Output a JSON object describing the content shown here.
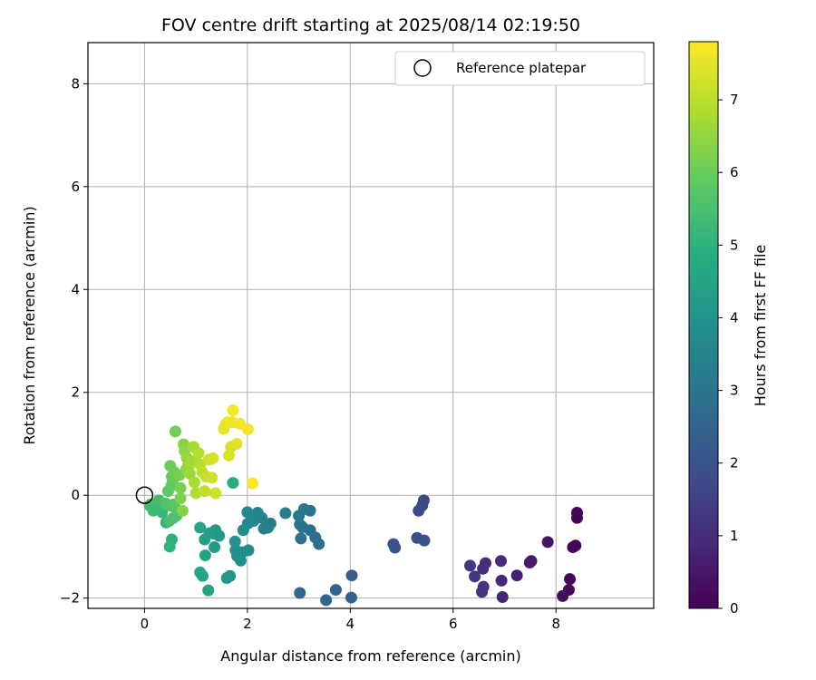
{
  "chart_data": {
    "type": "scatter",
    "title": "FOV centre drift starting at 2025/08/14 02:19:50",
    "xlabel": "Angular distance from reference (arcmin)",
    "ylabel": "Rotation from reference (arcmin)",
    "xlim": [
      -1.1,
      9.9
    ],
    "ylim": [
      -2.2,
      8.8
    ],
    "xticks": [
      0,
      2,
      4,
      6,
      8
    ],
    "yticks": [
      -2,
      0,
      2,
      4,
      6,
      8
    ],
    "grid": true,
    "colormap": "viridis",
    "colorbar": {
      "label": "Hours from first FF file",
      "range": [
        0,
        7.8
      ],
      "ticks": [
        0,
        1,
        2,
        3,
        4,
        5,
        6,
        7
      ]
    },
    "legend": {
      "label": "Reference platepar",
      "location": "top-right"
    },
    "reference_point": {
      "x": 0,
      "y": 0
    },
    "points": [
      {
        "x": 8.41,
        "y": -0.34,
        "h": 0.05
      },
      {
        "x": 8.41,
        "y": -0.44,
        "h": 0.08
      },
      {
        "x": 8.38,
        "y": -0.98,
        "h": 0.12
      },
      {
        "x": 8.33,
        "y": -1.01,
        "h": 0.15
      },
      {
        "x": 8.27,
        "y": -1.63,
        "h": 0.2
      },
      {
        "x": 8.25,
        "y": -1.84,
        "h": 0.25
      },
      {
        "x": 8.13,
        "y": -1.96,
        "h": 0.3
      },
      {
        "x": 7.84,
        "y": -0.91,
        "h": 0.45
      },
      {
        "x": 7.52,
        "y": -1.28,
        "h": 0.55
      },
      {
        "x": 7.49,
        "y": -1.31,
        "h": 0.6
      },
      {
        "x": 7.24,
        "y": -1.56,
        "h": 0.7
      },
      {
        "x": 6.96,
        "y": -1.98,
        "h": 0.8
      },
      {
        "x": 6.94,
        "y": -1.66,
        "h": 0.85
      },
      {
        "x": 6.93,
        "y": -1.28,
        "h": 0.9
      },
      {
        "x": 6.63,
        "y": -1.32,
        "h": 1.0
      },
      {
        "x": 6.58,
        "y": -1.43,
        "h": 1.05
      },
      {
        "x": 6.59,
        "y": -1.78,
        "h": 1.1
      },
      {
        "x": 6.56,
        "y": -1.88,
        "h": 1.15
      },
      {
        "x": 6.42,
        "y": -1.58,
        "h": 1.2
      },
      {
        "x": 6.33,
        "y": -1.37,
        "h": 1.3
      },
      {
        "x": 5.43,
        "y": -0.1,
        "h": 1.7
      },
      {
        "x": 5.4,
        "y": -0.2,
        "h": 1.75
      },
      {
        "x": 5.33,
        "y": -0.3,
        "h": 1.8
      },
      {
        "x": 5.3,
        "y": -0.83,
        "h": 1.85
      },
      {
        "x": 5.44,
        "y": -0.88,
        "h": 1.9
      },
      {
        "x": 4.84,
        "y": -0.95,
        "h": 1.95
      },
      {
        "x": 4.87,
        "y": -1.02,
        "h": 2.0
      },
      {
        "x": 4.03,
        "y": -1.56,
        "h": 2.3
      },
      {
        "x": 4.02,
        "y": -1.99,
        "h": 2.35
      },
      {
        "x": 3.72,
        "y": -1.84,
        "h": 2.45
      },
      {
        "x": 3.53,
        "y": -2.04,
        "h": 2.55
      },
      {
        "x": 3.02,
        "y": -1.9,
        "h": 2.65
      },
      {
        "x": 3.39,
        "y": -0.95,
        "h": 2.75
      },
      {
        "x": 3.32,
        "y": -0.82,
        "h": 2.8
      },
      {
        "x": 3.22,
        "y": -0.68,
        "h": 2.85
      },
      {
        "x": 3.07,
        "y": -0.62,
        "h": 2.9
      },
      {
        "x": 3.04,
        "y": -0.84,
        "h": 2.95
      },
      {
        "x": 3.02,
        "y": -0.57,
        "h": 3.0
      },
      {
        "x": 3.22,
        "y": -0.3,
        "h": 3.05
      },
      {
        "x": 3.1,
        "y": -0.27,
        "h": 3.1
      },
      {
        "x": 3.0,
        "y": -0.4,
        "h": 3.15
      },
      {
        "x": 2.74,
        "y": -0.35,
        "h": 3.2
      },
      {
        "x": 2.45,
        "y": -0.55,
        "h": 3.3
      },
      {
        "x": 2.4,
        "y": -0.63,
        "h": 3.35
      },
      {
        "x": 2.32,
        "y": -0.65,
        "h": 3.4
      },
      {
        "x": 2.28,
        "y": -0.44,
        "h": 3.45
      },
      {
        "x": 2.2,
        "y": -0.34,
        "h": 3.5
      },
      {
        "x": 2.12,
        "y": -0.5,
        "h": 3.55
      },
      {
        "x": 2.01,
        "y": -0.55,
        "h": 3.6
      },
      {
        "x": 2.0,
        "y": -0.33,
        "h": 3.65
      },
      {
        "x": 1.92,
        "y": -0.68,
        "h": 3.7
      },
      {
        "x": 2.02,
        "y": -1.07,
        "h": 3.75
      },
      {
        "x": 1.9,
        "y": -1.11,
        "h": 3.8
      },
      {
        "x": 1.87,
        "y": -1.27,
        "h": 3.85
      },
      {
        "x": 1.8,
        "y": -1.18,
        "h": 3.9
      },
      {
        "x": 1.77,
        "y": -1.07,
        "h": 3.95
      },
      {
        "x": 1.76,
        "y": -0.9,
        "h": 4.0
      },
      {
        "x": 1.66,
        "y": -1.57,
        "h": 4.05
      },
      {
        "x": 1.6,
        "y": -1.61,
        "h": 4.1
      },
      {
        "x": 1.45,
        "y": -0.79,
        "h": 4.15
      },
      {
        "x": 1.38,
        "y": -0.68,
        "h": 4.2
      },
      {
        "x": 1.35,
        "y": -0.75,
        "h": 4.25
      },
      {
        "x": 1.36,
        "y": -1.01,
        "h": 4.3
      },
      {
        "x": 1.26,
        "y": -0.74,
        "h": 4.35
      },
      {
        "x": 1.17,
        "y": -0.86,
        "h": 4.4
      },
      {
        "x": 1.18,
        "y": -1.17,
        "h": 4.45
      },
      {
        "x": 1.24,
        "y": -1.85,
        "h": 4.5
      },
      {
        "x": 1.13,
        "y": -1.57,
        "h": 4.55
      },
      {
        "x": 1.08,
        "y": -1.5,
        "h": 4.6
      },
      {
        "x": 1.08,
        "y": -0.63,
        "h": 4.65
      },
      {
        "x": 1.72,
        "y": 0.24,
        "h": 4.7
      },
      {
        "x": 0.53,
        "y": -0.86,
        "h": 5.0
      },
      {
        "x": 0.49,
        "y": -1.0,
        "h": 5.05
      },
      {
        "x": 0.42,
        "y": -0.53,
        "h": 5.1
      },
      {
        "x": 0.34,
        "y": -0.33,
        "h": 5.15
      },
      {
        "x": 0.25,
        "y": -0.27,
        "h": 5.2
      },
      {
        "x": 0.17,
        "y": -0.3,
        "h": 5.25
      },
      {
        "x": 0.1,
        "y": -0.2,
        "h": 5.3
      },
      {
        "x": 0.12,
        "y": -0.18,
        "h": 5.35
      },
      {
        "x": 0.28,
        "y": -0.1,
        "h": 5.4
      },
      {
        "x": 0.48,
        "y": -0.5,
        "h": 5.45
      },
      {
        "x": 0.55,
        "y": -0.45,
        "h": 5.5
      },
      {
        "x": 0.62,
        "y": -0.4,
        "h": 5.55
      },
      {
        "x": 0.41,
        "y": -0.16,
        "h": 5.6
      },
      {
        "x": 0.48,
        "y": -0.2,
        "h": 5.65
      },
      {
        "x": 0.57,
        "y": -0.18,
        "h": 5.7
      },
      {
        "x": 0.6,
        "y": -0.25,
        "h": 5.75
      },
      {
        "x": 0.46,
        "y": 0.08,
        "h": 5.8
      },
      {
        "x": 0.52,
        "y": 0.18,
        "h": 5.85
      },
      {
        "x": 0.55,
        "y": 0.29,
        "h": 5.9
      },
      {
        "x": 0.53,
        "y": 0.36,
        "h": 5.95
      },
      {
        "x": 0.5,
        "y": 0.57,
        "h": 6.0
      },
      {
        "x": 0.58,
        "y": 0.45,
        "h": 6.05
      },
      {
        "x": 0.6,
        "y": 1.24,
        "h": 6.1
      },
      {
        "x": 0.68,
        "y": 0.39,
        "h": 6.15
      },
      {
        "x": 0.7,
        "y": 0.14,
        "h": 6.2
      },
      {
        "x": 0.7,
        "y": -0.06,
        "h": 6.25
      },
      {
        "x": 0.74,
        "y": -0.3,
        "h": 6.3
      },
      {
        "x": 0.76,
        "y": 0.99,
        "h": 6.35
      },
      {
        "x": 0.78,
        "y": 0.86,
        "h": 6.4
      },
      {
        "x": 0.81,
        "y": 0.5,
        "h": 6.45
      },
      {
        "x": 0.82,
        "y": 0.73,
        "h": 6.5
      },
      {
        "x": 0.84,
        "y": 0.56,
        "h": 6.55
      },
      {
        "x": 0.88,
        "y": 0.42,
        "h": 6.6
      },
      {
        "x": 0.9,
        "y": 0.62,
        "h": 6.65
      },
      {
        "x": 0.92,
        "y": 0.66,
        "h": 6.7
      },
      {
        "x": 0.95,
        "y": 0.94,
        "h": 6.75
      },
      {
        "x": 0.97,
        "y": 0.25,
        "h": 6.8
      },
      {
        "x": 1.0,
        "y": 0.04,
        "h": 6.85
      },
      {
        "x": 1.05,
        "y": 0.82,
        "h": 6.9
      },
      {
        "x": 1.08,
        "y": 0.6,
        "h": 6.95
      },
      {
        "x": 1.12,
        "y": 0.45,
        "h": 7.0
      },
      {
        "x": 1.17,
        "y": 0.08,
        "h": 7.05
      },
      {
        "x": 1.2,
        "y": 0.36,
        "h": 7.1
      },
      {
        "x": 1.25,
        "y": 0.69,
        "h": 7.15
      },
      {
        "x": 1.31,
        "y": 0.34,
        "h": 7.2
      },
      {
        "x": 1.38,
        "y": 0.04,
        "h": 7.25
      },
      {
        "x": 1.33,
        "y": 0.72,
        "h": 7.3
      },
      {
        "x": 1.68,
        "y": 0.94,
        "h": 7.35
      },
      {
        "x": 1.64,
        "y": 0.77,
        "h": 7.4
      },
      {
        "x": 1.79,
        "y": 1.0,
        "h": 7.45
      },
      {
        "x": 1.54,
        "y": 1.29,
        "h": 7.5
      },
      {
        "x": 1.58,
        "y": 1.38,
        "h": 7.55
      },
      {
        "x": 1.62,
        "y": 1.42,
        "h": 7.6
      },
      {
        "x": 1.7,
        "y": 1.42,
        "h": 7.62
      },
      {
        "x": 1.85,
        "y": 1.39,
        "h": 7.65
      },
      {
        "x": 2.01,
        "y": 1.28,
        "h": 7.68
      },
      {
        "x": 1.72,
        "y": 1.65,
        "h": 7.7
      },
      {
        "x": 2.1,
        "y": 0.23,
        "h": 7.75
      }
    ]
  }
}
